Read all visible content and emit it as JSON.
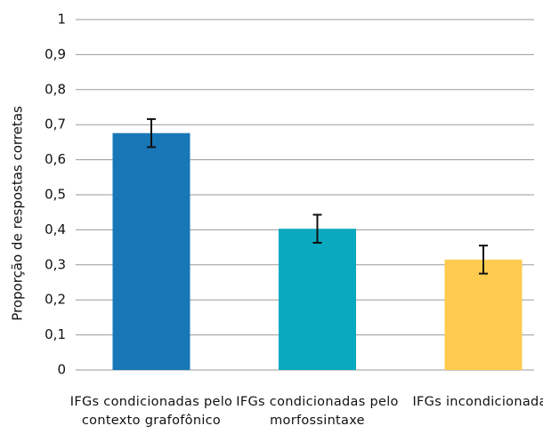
{
  "chart_data": {
    "type": "bar",
    "ylabel": "Proporção de respostas corretas",
    "categories": [
      "IFGs condicionadas pelo contexto grafofônico",
      "IFGs condicionadas pelo morfossintaxe",
      "IFGs incondicionadas"
    ],
    "values": [
      0.676,
      0.403,
      0.315
    ],
    "errors": [
      0.04,
      0.04,
      0.04
    ],
    "colors": [
      "#1777b7",
      "#0aa9c0",
      "#ffcb4f"
    ],
    "ylim": [
      0,
      1
    ],
    "yticks": [
      0,
      {
        "value": 0.1,
        "label": "0,1"
      },
      {
        "value": 0.2,
        "label": "0,2"
      },
      {
        "value": 0.3,
        "label": "0,3"
      },
      {
        "value": 0.4,
        "label": "0,4"
      },
      {
        "value": 0.5,
        "label": "0,5"
      },
      {
        "value": 0.6,
        "label": "0,6"
      },
      {
        "value": 0.7,
        "label": "0,7"
      },
      {
        "value": 0.8,
        "label": "0,8"
      },
      {
        "value": 0.9,
        "label": "0,9"
      },
      1
    ],
    "grid": true
  }
}
